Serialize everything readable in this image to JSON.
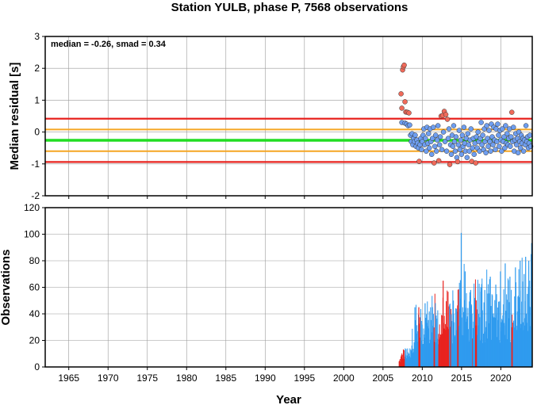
{
  "chart_data": [
    {
      "type": "scatter",
      "title": "Station YULB, phase P, 7568 observations",
      "ylabel": "Median residual [s]",
      "annotation": "median = -0.26, smad = 0.34",
      "xlim": [
        1962,
        2024
      ],
      "ylim": [
        -2,
        3
      ],
      "x_ticks": [
        "1965",
        "1970",
        "1975",
        "1980",
        "1985",
        "1990",
        "1995",
        "2000",
        "2005",
        "2010",
        "2015",
        "2020"
      ],
      "y_ticks": [
        "-2",
        "-1",
        "0",
        "1",
        "2",
        "3"
      ],
      "grid": true,
      "median": -0.26,
      "inner_band": [
        0.08,
        -0.6
      ],
      "outer_band": [
        0.42,
        -0.94
      ],
      "colors": {
        "median_line": "#22dd22",
        "inner_band": "#f5a623",
        "outer_band": "#e8231f",
        "inlier": "#6e9ef0",
        "outlier": "#f06a5a",
        "edge": "#333333"
      },
      "outliers": [
        [
          2007.3,
          1.2
        ],
        [
          2007.4,
          0.75
        ],
        [
          2007.5,
          1.95
        ],
        [
          2007.6,
          2.05
        ],
        [
          2007.7,
          2.1
        ],
        [
          2007.8,
          0.95
        ],
        [
          2007.9,
          0.63
        ],
        [
          2008.1,
          0.62
        ],
        [
          2008.3,
          0.6
        ],
        [
          2009.6,
          -0.92
        ],
        [
          2011.5,
          -0.97
        ],
        [
          2012.1,
          -0.9
        ],
        [
          2012.4,
          0.5
        ],
        [
          2012.6,
          0.52
        ],
        [
          2012.8,
          0.65
        ],
        [
          2013.0,
          0.55
        ],
        [
          2013.2,
          0.4
        ],
        [
          2013.5,
          -1.02
        ],
        [
          2014.5,
          -0.93
        ],
        [
          2016.3,
          -0.92
        ],
        [
          2016.8,
          -0.97
        ],
        [
          2021.4,
          0.62
        ]
      ],
      "inliers": [
        [
          2007.4,
          0.3
        ],
        [
          2007.8,
          0.28
        ],
        [
          2008.0,
          0.25
        ],
        [
          2008.2,
          0.2
        ],
        [
          2008.4,
          0.22
        ],
        [
          2008.5,
          -0.1
        ],
        [
          2008.6,
          -0.3
        ],
        [
          2008.7,
          -0.05
        ],
        [
          2008.8,
          -0.4
        ],
        [
          2008.9,
          -0.2
        ],
        [
          2009.0,
          -0.3
        ],
        [
          2009.1,
          -0.1
        ],
        [
          2009.2,
          -0.45
        ],
        [
          2009.3,
          -0.25
        ],
        [
          2009.4,
          -0.35
        ],
        [
          2009.5,
          -0.5
        ],
        [
          2009.7,
          -0.4
        ],
        [
          2009.8,
          -0.2
        ],
        [
          2009.9,
          -0.55
        ],
        [
          2010.0,
          -0.3
        ],
        [
          2010.1,
          -0.1
        ],
        [
          2010.2,
          0.1
        ],
        [
          2010.3,
          -0.4
        ],
        [
          2010.4,
          -0.2
        ],
        [
          2010.5,
          -0.6
        ],
        [
          2010.6,
          0.15
        ],
        [
          2010.7,
          -0.35
        ],
        [
          2010.8,
          -0.05
        ],
        [
          2010.9,
          -0.5
        ],
        [
          2011.0,
          0.1
        ],
        [
          2011.1,
          -0.3
        ],
        [
          2011.2,
          -0.7
        ],
        [
          2011.3,
          -0.2
        ],
        [
          2011.4,
          0.15
        ],
        [
          2011.6,
          -0.45
        ],
        [
          2011.7,
          -0.1
        ],
        [
          2011.8,
          -0.6
        ],
        [
          2011.9,
          -0.25
        ],
        [
          2012.0,
          0.2
        ],
        [
          2012.2,
          -0.4
        ],
        [
          2012.3,
          -0.15
        ],
        [
          2012.5,
          -0.55
        ],
        [
          2012.7,
          0.0
        ],
        [
          2012.9,
          -0.3
        ],
        [
          2013.1,
          -0.6
        ],
        [
          2013.3,
          -0.2
        ],
        [
          2013.4,
          0.1
        ],
        [
          2013.6,
          -0.4
        ],
        [
          2013.7,
          -0.7
        ],
        [
          2013.8,
          -0.1
        ],
        [
          2013.9,
          -0.45
        ],
        [
          2014.0,
          0.2
        ],
        [
          2014.1,
          -0.3
        ],
        [
          2014.2,
          -0.6
        ],
        [
          2014.3,
          -0.15
        ],
        [
          2014.4,
          -0.8
        ],
        [
          2014.6,
          -0.4
        ],
        [
          2014.7,
          0.05
        ],
        [
          2014.8,
          -0.55
        ],
        [
          2014.9,
          -0.25
        ],
        [
          2015.0,
          -0.7
        ],
        [
          2015.1,
          -0.1
        ],
        [
          2015.2,
          -0.45
        ],
        [
          2015.3,
          0.15
        ],
        [
          2015.4,
          -0.35
        ],
        [
          2015.5,
          -0.6
        ],
        [
          2015.6,
          -0.2
        ],
        [
          2015.7,
          -0.8
        ],
        [
          2015.8,
          -0.05
        ],
        [
          2015.9,
          -0.4
        ],
        [
          2016.0,
          -0.6
        ],
        [
          2016.1,
          -0.25
        ],
        [
          2016.2,
          0.1
        ],
        [
          2016.4,
          -0.5
        ],
        [
          2016.5,
          -0.2
        ],
        [
          2016.6,
          -0.7
        ],
        [
          2016.7,
          -0.35
        ],
        [
          2016.9,
          -0.15
        ],
        [
          2017.0,
          -0.5
        ],
        [
          2017.1,
          0.0
        ],
        [
          2017.2,
          -0.3
        ],
        [
          2017.3,
          -0.6
        ],
        [
          2017.4,
          -0.2
        ],
        [
          2017.5,
          0.3
        ],
        [
          2017.6,
          -0.4
        ],
        [
          2017.7,
          -0.1
        ],
        [
          2017.8,
          -0.55
        ],
        [
          2017.9,
          0.1
        ],
        [
          2018.0,
          -0.3
        ],
        [
          2018.1,
          -0.65
        ],
        [
          2018.2,
          0.2
        ],
        [
          2018.3,
          -0.2
        ],
        [
          2018.4,
          -0.45
        ],
        [
          2018.5,
          0.05
        ],
        [
          2018.6,
          -0.3
        ],
        [
          2018.7,
          -0.6
        ],
        [
          2018.8,
          0.25
        ],
        [
          2018.9,
          -0.15
        ],
        [
          2019.0,
          -0.4
        ],
        [
          2019.1,
          0.15
        ],
        [
          2019.2,
          -0.25
        ],
        [
          2019.3,
          -0.55
        ],
        [
          2019.4,
          0.1
        ],
        [
          2019.5,
          -0.3
        ],
        [
          2019.6,
          0.25
        ],
        [
          2019.7,
          -0.1
        ],
        [
          2019.8,
          -0.45
        ],
        [
          2019.9,
          0.05
        ],
        [
          2020.0,
          -0.25
        ],
        [
          2020.1,
          -0.6
        ],
        [
          2020.2,
          0.1
        ],
        [
          2020.3,
          -0.3
        ],
        [
          2020.4,
          -0.15
        ],
        [
          2020.5,
          -0.5
        ],
        [
          2020.6,
          0.2
        ],
        [
          2020.7,
          -0.35
        ],
        [
          2020.8,
          -0.05
        ],
        [
          2020.9,
          -0.4
        ],
        [
          2021.0,
          -0.2
        ],
        [
          2021.1,
          0.1
        ],
        [
          2021.2,
          -0.45
        ],
        [
          2021.3,
          -0.15
        ],
        [
          2021.5,
          -0.3
        ],
        [
          2021.6,
          0.15
        ],
        [
          2021.7,
          -0.6
        ],
        [
          2021.8,
          -0.25
        ],
        [
          2021.9,
          -0.05
        ],
        [
          2022.0,
          -0.4
        ],
        [
          2022.1,
          -0.2
        ],
        [
          2022.2,
          -0.65
        ],
        [
          2022.3,
          0.0
        ],
        [
          2022.4,
          -0.3
        ],
        [
          2022.5,
          -0.5
        ],
        [
          2022.6,
          -0.1
        ],
        [
          2022.7,
          -0.35
        ],
        [
          2022.8,
          -0.2
        ],
        [
          2022.9,
          -0.6
        ],
        [
          2023.0,
          -0.25
        ],
        [
          2023.1,
          -0.4
        ],
        [
          2023.2,
          0.2
        ],
        [
          2023.3,
          -0.3
        ],
        [
          2023.4,
          -0.15
        ],
        [
          2023.5,
          -0.5
        ],
        [
          2023.6,
          -0.35
        ],
        [
          2023.7,
          -0.1
        ],
        [
          2023.8,
          -0.45
        ]
      ]
    },
    {
      "type": "bar",
      "ylabel": "Observations",
      "xlabel": "Year",
      "xlim": [
        1962,
        2024
      ],
      "ylim": [
        0,
        120
      ],
      "x_ticks": [
        "1965",
        "1970",
        "1975",
        "1980",
        "1985",
        "1990",
        "1995",
        "2000",
        "2005",
        "2010",
        "2015",
        "2020"
      ],
      "y_ticks": [
        "0",
        "20",
        "40",
        "60",
        "80",
        "100",
        "120"
      ],
      "grid": true,
      "colors": {
        "normal": "#2f9bef",
        "flagged": "#e8231f"
      },
      "bar_width_years": 0.06,
      "flagged_years": [
        [
          2007.0,
          2007.75
        ],
        [
          2009.5,
          2009.7
        ],
        [
          2011.4,
          2011.6
        ],
        [
          2012.0,
          2013.4
        ],
        [
          2013.5,
          2013.6
        ],
        [
          2014.4,
          2014.6
        ],
        [
          2016.3,
          2016.4
        ],
        [
          2016.7,
          2016.9
        ],
        [
          2021.3,
          2021.5
        ]
      ],
      "anchors": [
        [
          2007.0,
          5
        ],
        [
          2007.3,
          10
        ],
        [
          2007.6,
          14
        ],
        [
          2008.0,
          14
        ],
        [
          2008.3,
          10
        ],
        [
          2008.5,
          20
        ],
        [
          2008.7,
          28
        ],
        [
          2009.0,
          35
        ],
        [
          2009.4,
          38
        ],
        [
          2009.8,
          40
        ],
        [
          2010.1,
          42
        ],
        [
          2010.5,
          42
        ],
        [
          2010.9,
          40
        ],
        [
          2011.3,
          42
        ],
        [
          2011.7,
          42
        ],
        [
          2012.1,
          40
        ],
        [
          2012.5,
          45
        ],
        [
          2012.9,
          48
        ],
        [
          2013.3,
          45
        ],
        [
          2013.7,
          42
        ],
        [
          2014.1,
          46
        ],
        [
          2014.5,
          48
        ],
        [
          2014.8,
          55
        ],
        [
          2015.1,
          55
        ],
        [
          2015.5,
          52
        ],
        [
          2015.9,
          50
        ],
        [
          2016.3,
          48
        ],
        [
          2016.8,
          46
        ],
        [
          2017.2,
          48
        ],
        [
          2017.7,
          50
        ],
        [
          2018.2,
          52
        ],
        [
          2018.7,
          55
        ],
        [
          2019.2,
          52
        ],
        [
          2019.7,
          50
        ],
        [
          2020.2,
          55
        ],
        [
          2020.6,
          58
        ],
        [
          2021.0,
          52
        ],
        [
          2021.4,
          50
        ],
        [
          2021.8,
          52
        ],
        [
          2022.2,
          55
        ],
        [
          2022.6,
          58
        ],
        [
          2023.0,
          60
        ],
        [
          2023.4,
          62
        ],
        [
          2023.8,
          65
        ]
      ],
      "peaks": [
        [
          2009.0,
          45
        ],
        [
          2009.5,
          45
        ],
        [
          2010.3,
          48
        ],
        [
          2011.0,
          45
        ],
        [
          2012.6,
          65
        ],
        [
          2013.9,
          50
        ],
        [
          2014.5,
          58
        ],
        [
          2014.9,
          101
        ],
        [
          2015.4,
          72
        ],
        [
          2016.1,
          58
        ],
        [
          2016.6,
          52
        ],
        [
          2017.4,
          60
        ],
        [
          2017.9,
          58
        ],
        [
          2018.6,
          68
        ],
        [
          2019.3,
          62
        ],
        [
          2019.9,
          72
        ],
        [
          2020.5,
          78
        ],
        [
          2021.1,
          68
        ],
        [
          2021.8,
          75
        ],
        [
          2022.4,
          80
        ],
        [
          2022.9,
          70
        ],
        [
          2023.1,
          83
        ],
        [
          2023.5,
          80
        ],
        [
          2023.8,
          85
        ]
      ]
    }
  ]
}
